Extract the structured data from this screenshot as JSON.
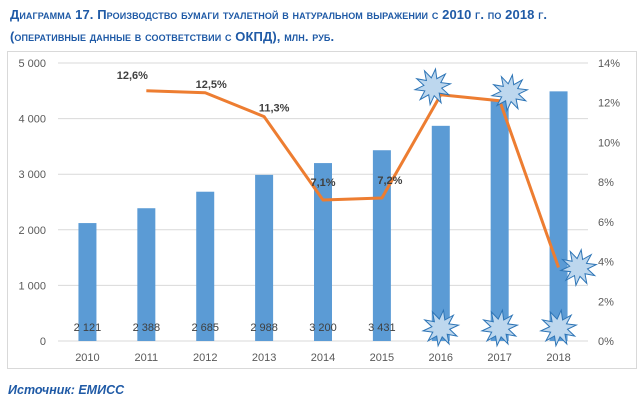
{
  "title_line1": "Диаграмма 17. Производство бумаги туалетной в натуральном выражении с 2010 г. по 2018 г.",
  "title_line2": "(оперативные данные в соответствии с ОКПД), млн. руб.",
  "source": "Источник: ЕМИСС",
  "chart_data": {
    "type": "bar",
    "categories": [
      "2010",
      "2011",
      "2012",
      "2013",
      "2014",
      "2015",
      "2016",
      "2017",
      "2018"
    ],
    "bars": {
      "values": [
        2121,
        2388,
        2685,
        2988,
        3200,
        3431,
        3870,
        4320,
        4490
      ],
      "labels": [
        "2 121",
        "2 388",
        "2 685",
        "2 988",
        "3 200",
        "3 431",
        "",
        "",
        ""
      ],
      "color": "#5b9bd5"
    },
    "line": {
      "values": [
        null,
        12.6,
        12.5,
        11.3,
        7.1,
        7.2,
        12.4,
        12.1,
        3.7
      ],
      "labels": [
        "",
        "12,6%",
        "12,5%",
        "11,3%",
        "7,1%",
        "7,2%",
        "",
        "",
        ""
      ],
      "color": "#ed7d31"
    },
    "y_left": {
      "min": 0,
      "max": 5000,
      "step": 1000,
      "ticks": [
        "0",
        "1 000",
        "2 000",
        "3 000",
        "4 000",
        "5 000"
      ]
    },
    "y_right": {
      "min": 0,
      "max": 14,
      "step": 2,
      "ticks": [
        "0%",
        "2%",
        "4%",
        "6%",
        "8%",
        "10%",
        "12%",
        "14%"
      ]
    },
    "grid": true,
    "starburst_years": [
      "2016",
      "2017",
      "2018"
    ],
    "starburst_color": "#bdd7ee"
  }
}
